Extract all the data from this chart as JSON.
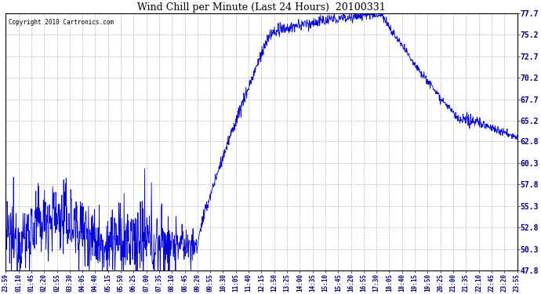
{
  "title": "Wind Chill per Minute (Last 24 Hours)  20100331",
  "copyright_text": "Copyright 2010 Cartronics.com",
  "line_color": "#0000dd",
  "background_color": "#ffffff",
  "grid_color": "#bbbbbb",
  "yticks": [
    47.8,
    50.3,
    52.8,
    55.3,
    57.8,
    60.3,
    62.8,
    65.2,
    67.7,
    70.2,
    72.7,
    75.2,
    77.7
  ],
  "ymin": 47.8,
  "ymax": 77.7,
  "xtick_labels": [
    "23:59",
    "01:10",
    "01:45",
    "02:20",
    "02:55",
    "03:30",
    "04:05",
    "04:40",
    "05:15",
    "05:50",
    "06:25",
    "07:00",
    "07:35",
    "08:10",
    "08:45",
    "09:20",
    "09:55",
    "10:30",
    "11:05",
    "11:40",
    "12:15",
    "12:50",
    "13:25",
    "14:00",
    "14:35",
    "15:10",
    "15:45",
    "16:20",
    "16:55",
    "17:30",
    "18:05",
    "18:40",
    "19:15",
    "19:50",
    "20:25",
    "21:00",
    "21:35",
    "22:10",
    "22:45",
    "23:20",
    "23:55"
  ],
  "figwidth": 6.9,
  "figheight": 3.75,
  "dpi": 100
}
